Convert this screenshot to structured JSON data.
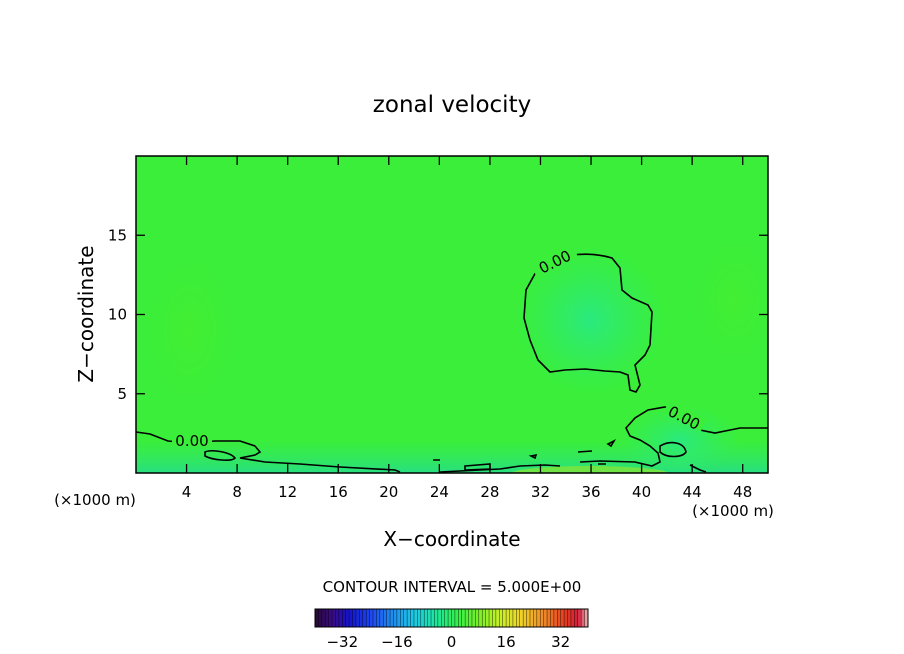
{
  "title": "zonal velocity",
  "chart_data": {
    "type": "heatmap",
    "title": "zonal velocity",
    "xlabel": "X−coordinate",
    "ylabel": "Z−coordinate",
    "x_unit_left": "(×1000 m)",
    "x_unit_right": "(×1000 m)",
    "xlim": [
      0,
      50
    ],
    "ylim": [
      0,
      20
    ],
    "x_ticks": [
      4,
      8,
      12,
      16,
      20,
      24,
      28,
      32,
      36,
      40,
      44,
      48
    ],
    "x_tick_labels": [
      "4",
      "8",
      "12",
      "16",
      "20",
      "24",
      "28",
      "32",
      "36",
      "40",
      "44",
      "48"
    ],
    "y_ticks": [
      5,
      10,
      15
    ],
    "y_tick_labels": [
      "5",
      "10",
      "15"
    ],
    "field_dominant_value": 0,
    "contour_levels": [
      0
    ],
    "contour_labels": [
      "0.00",
      "0.00",
      "0.00"
    ],
    "contour_interval_text": "CONTOUR INTERVAL = 5.000E+00",
    "colorbar": {
      "min": -40,
      "max": 40,
      "ticks": [
        -32,
        -16,
        0,
        16,
        32
      ],
      "tick_labels": [
        "−32",
        "−16",
        "0",
        "16",
        "32"
      ]
    },
    "colors": {
      "field_green": "#3aee3a",
      "negative_region": "#2ce47a",
      "contour_line": "#000000"
    }
  }
}
